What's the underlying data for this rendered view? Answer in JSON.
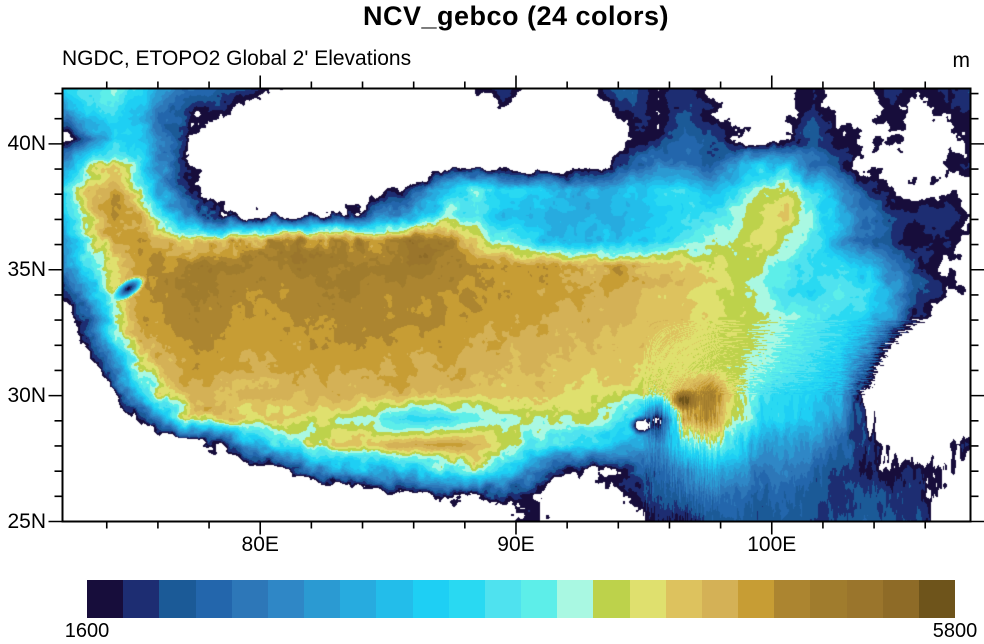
{
  "figure": {
    "title": "NCV_gebco (24 colors)",
    "subtitle": "NGDC, ETOPO2 Global 2' Elevations",
    "units": "m"
  },
  "chart_data": {
    "type": "heatmap",
    "variant": "raster-elevation-map",
    "region": "Tibetan Plateau and surrounding basins (western China, Himalaya)",
    "title": "NCV_gebco (24 colors)",
    "subtitle": "NGDC, ETOPO2 Global 2' Elevations",
    "units": "m",
    "grid_on": false,
    "x": {
      "range": [
        72.27,
        107.77
      ],
      "major_ticks": [
        80,
        90,
        100
      ],
      "major_labels": [
        "80E",
        "90E",
        "100E"
      ],
      "minor_tick_step": 2
    },
    "y": {
      "range": [
        25.0,
        42.2
      ],
      "major_ticks": [
        25,
        30,
        35,
        40
      ],
      "major_labels": [
        "25N",
        "30N",
        "35N",
        "40N"
      ],
      "minor_tick_step": 1
    },
    "colorbar": {
      "min": 1600,
      "max": 5800,
      "n_colors": 24,
      "step": 175,
      "min_label": "1600",
      "max_label": "5800",
      "below_min_color": "#ffffff",
      "palette": [
        "#170d3b",
        "#1d2d72",
        "#1b5a97",
        "#2366ac",
        "#2d77b8",
        "#2f87c6",
        "#2b9ad2",
        "#27abdf",
        "#23bdea",
        "#1ecff4",
        "#29d9f2",
        "#4fe2ef",
        "#5deee9",
        "#a9f8e2",
        "#bdd24b",
        "#dfe06e",
        "#ddc25e",
        "#d4b156",
        "#c79d34",
        "#ac8530",
        "#a07c2d",
        "#9a752c",
        "#8e6b27",
        "#6e541b"
      ]
    },
    "grid": {
      "lon_start": 72.27,
      "lon_end": 107.77,
      "lat_start": 42.2,
      "lat_end": 25.0,
      "ncols": 36,
      "nrows": 18,
      "elevations_m": [
        [
          3200,
          3600,
          3800,
          3400,
          2600,
          2400,
          2200,
          2000,
          1700,
          1500,
          1400,
          1300,
          1100,
          1000,
          1000,
          1100,
          1700,
          1900,
          1400,
          1100,
          1200,
          1800,
          2100,
          1700,
          1900,
          1600,
          1300,
          1100,
          1400,
          1700,
          1300,
          1600,
          1900,
          1600,
          1800,
          2000
        ],
        [
          2600,
          3400,
          3600,
          3000,
          2200,
          1800,
          1600,
          1300,
          1100,
          1000,
          1000,
          1000,
          1000,
          950,
          950,
          1000,
          1300,
          1500,
          1100,
          1000,
          1000,
          1400,
          1900,
          1600,
          2000,
          1700,
          1400,
          1200,
          1500,
          1900,
          1500,
          1400,
          1700,
          1500,
          1600,
          1800
        ],
        [
          1400,
          2200,
          3200,
          3200,
          2400,
          1500,
          1200,
          1050,
          1000,
          950,
          950,
          950,
          950,
          900,
          900,
          900,
          950,
          1000,
          1000,
          950,
          1000,
          1200,
          1600,
          1800,
          2200,
          1900,
          1600,
          1400,
          1700,
          2100,
          1700,
          1500,
          1600,
          1400,
          1500,
          1700
        ],
        [
          2600,
          3800,
          4400,
          3600,
          2400,
          1500,
          1150,
          1000,
          950,
          950,
          950,
          950,
          950,
          950,
          950,
          1000,
          1050,
          1200,
          1100,
          1050,
          1100,
          1400,
          2200,
          2600,
          2400,
          2100,
          2600,
          3200,
          3000,
          2200,
          1800,
          1500,
          1400,
          1500,
          1600,
          1700
        ],
        [
          3400,
          4600,
          4800,
          3800,
          2600,
          1700,
          1300,
          1100,
          1050,
          1050,
          1100,
          1200,
          1400,
          1600,
          2400,
          3400,
          3900,
          3400,
          3100,
          3000,
          2950,
          3000,
          3150,
          3400,
          3400,
          3000,
          3400,
          4000,
          4200,
          3400,
          2600,
          2000,
          1700,
          1500,
          1600,
          1500
        ],
        [
          3000,
          4400,
          5000,
          4600,
          3400,
          2400,
          1700,
          1400,
          1400,
          1500,
          1600,
          1800,
          2000,
          2400,
          3200,
          3800,
          3600,
          3100,
          3000,
          2950,
          2900,
          2950,
          3050,
          3200,
          3400,
          3600,
          3900,
          4200,
          4400,
          3800,
          3000,
          2400,
          2000,
          1800,
          1900,
          1600
        ],
        [
          2600,
          3800,
          4800,
          5000,
          4600,
          4200,
          4400,
          4800,
          5000,
          5100,
          5000,
          4900,
          4900,
          5200,
          5400,
          5000,
          4400,
          3900,
          3400,
          3050,
          3000,
          3050,
          3100,
          3400,
          3700,
          3900,
          4100,
          4300,
          4100,
          3600,
          2800,
          2200,
          1900,
          1700,
          1800,
          1500
        ],
        [
          2200,
          3600,
          4400,
          4900,
          5000,
          5100,
          5200,
          5100,
          5100,
          5200,
          5150,
          5100,
          5100,
          5150,
          5200,
          5150,
          5000,
          4950,
          4900,
          4850,
          4800,
          4800,
          4750,
          4600,
          4500,
          4300,
          4200,
          4000,
          3700,
          3500,
          3600,
          3200,
          2400,
          1800,
          1500,
          1400
        ],
        [
          1600,
          2800,
          4400,
          4800,
          5000,
          5200,
          5100,
          5000,
          4950,
          5000,
          5050,
          5100,
          5050,
          5000,
          5000,
          4950,
          4900,
          4850,
          4800,
          4800,
          4750,
          4700,
          4650,
          4500,
          4400,
          4300,
          4100,
          3900,
          3500,
          3400,
          3800,
          3600,
          2800,
          2000,
          1700,
          1500
        ],
        [
          1200,
          2200,
          4000,
          4800,
          4900,
          5100,
          5000,
          4900,
          4900,
          4950,
          5000,
          5000,
          5000,
          4950,
          4900,
          4900,
          4850,
          4800,
          4800,
          4750,
          4700,
          4650,
          4600,
          4500,
          4450,
          4300,
          4200,
          4100,
          3900,
          3700,
          3500,
          3300,
          2600,
          1700,
          1200,
          1000
        ],
        [
          900,
          1600,
          3400,
          4600,
          4800,
          5000,
          4900,
          4800,
          4800,
          4850,
          4900,
          4900,
          4900,
          4850,
          4800,
          4800,
          4750,
          4700,
          4700,
          4650,
          4600,
          4550,
          4500,
          4400,
          4350,
          4250,
          4200,
          4000,
          3800,
          3600,
          3400,
          2800,
          1600,
          900,
          700,
          800
        ],
        [
          700,
          1000,
          2400,
          4200,
          4700,
          4900,
          4800,
          4700,
          4700,
          4750,
          4800,
          4800,
          4800,
          4750,
          4700,
          4700,
          4650,
          4600,
          4600,
          4550,
          4500,
          4450,
          4400,
          4300,
          4300,
          4200,
          4100,
          3900,
          3700,
          3500,
          3200,
          2200,
          800,
          500,
          500,
          700
        ],
        [
          600,
          700,
          1400,
          3200,
          4400,
          4700,
          4600,
          4500,
          4550,
          4600,
          4650,
          4650,
          4650,
          4600,
          4550,
          4550,
          4500,
          4450,
          4450,
          4400,
          4350,
          4300,
          4250,
          4200,
          4600,
          5200,
          4200,
          3600,
          3400,
          3300,
          3000,
          1400,
          600,
          450,
          500,
          800
        ],
        [
          500,
          500,
          700,
          1500,
          3000,
          4300,
          4500,
          4400,
          4400,
          4300,
          4200,
          4100,
          3900,
          3500,
          3400,
          3600,
          3800,
          4000,
          4100,
          4000,
          4000,
          3900,
          3400,
          1400,
          4800,
          5000,
          4200,
          3400,
          3300,
          3100,
          2600,
          1600,
          900,
          600,
          700,
          1000
        ],
        [
          400,
          400,
          450,
          600,
          600,
          900,
          1800,
          2600,
          3200,
          3800,
          4200,
          4400,
          4500,
          4600,
          4700,
          4800,
          4600,
          4200,
          3800,
          3600,
          3400,
          3200,
          3000,
          2600,
          3600,
          4000,
          3400,
          2800,
          2800,
          2600,
          2200,
          1900,
          1400,
          1100,
          1500,
          1800
        ],
        [
          350,
          350,
          400,
          400,
          450,
          500,
          600,
          800,
          1400,
          2000,
          2400,
          2800,
          3000,
          3200,
          3400,
          3800,
          4000,
          3600,
          2600,
          1800,
          1400,
          1600,
          2000,
          2200,
          2600,
          3000,
          2800,
          2400,
          2400,
          2200,
          2000,
          1800,
          1600,
          1900,
          1700,
          1300
        ],
        [
          300,
          300,
          300,
          350,
          350,
          400,
          400,
          450,
          500,
          600,
          700,
          900,
          1100,
          1400,
          1600,
          1800,
          1700,
          1900,
          1600,
          1200,
          1100,
          1400,
          1800,
          2000,
          2200,
          2400,
          2300,
          2100,
          2200,
          2000,
          1900,
          2000,
          1900,
          1800,
          1400,
          1100
        ],
        [
          250,
          250,
          250,
          300,
          300,
          300,
          350,
          350,
          400,
          450,
          500,
          600,
          700,
          800,
          900,
          1000,
          900,
          1200,
          1800,
          1500,
          900,
          1100,
          1500,
          1800,
          1700,
          2000,
          2100,
          2000,
          2100,
          1900,
          2000,
          2100,
          2000,
          1900,
          1300,
          1000
        ]
      ]
    },
    "features": [
      {
        "name": "kashmir-valley-low",
        "lon": 74.9,
        "lat": 34.25,
        "rx": 0.85,
        "ry": 0.4,
        "rot_deg": -35,
        "elev_m": 1700
      },
      {
        "name": "tsangpo-gorge-low",
        "lon": 94.9,
        "lat": 28.8,
        "rx": 0.55,
        "ry": 0.45,
        "rot_deg": 0,
        "elev_m": 900
      },
      {
        "name": "high-massif",
        "lon": 96.6,
        "lat": 29.8,
        "rx": 0.75,
        "ry": 0.55,
        "rot_deg": 0,
        "elev_m": 5750
      }
    ]
  }
}
